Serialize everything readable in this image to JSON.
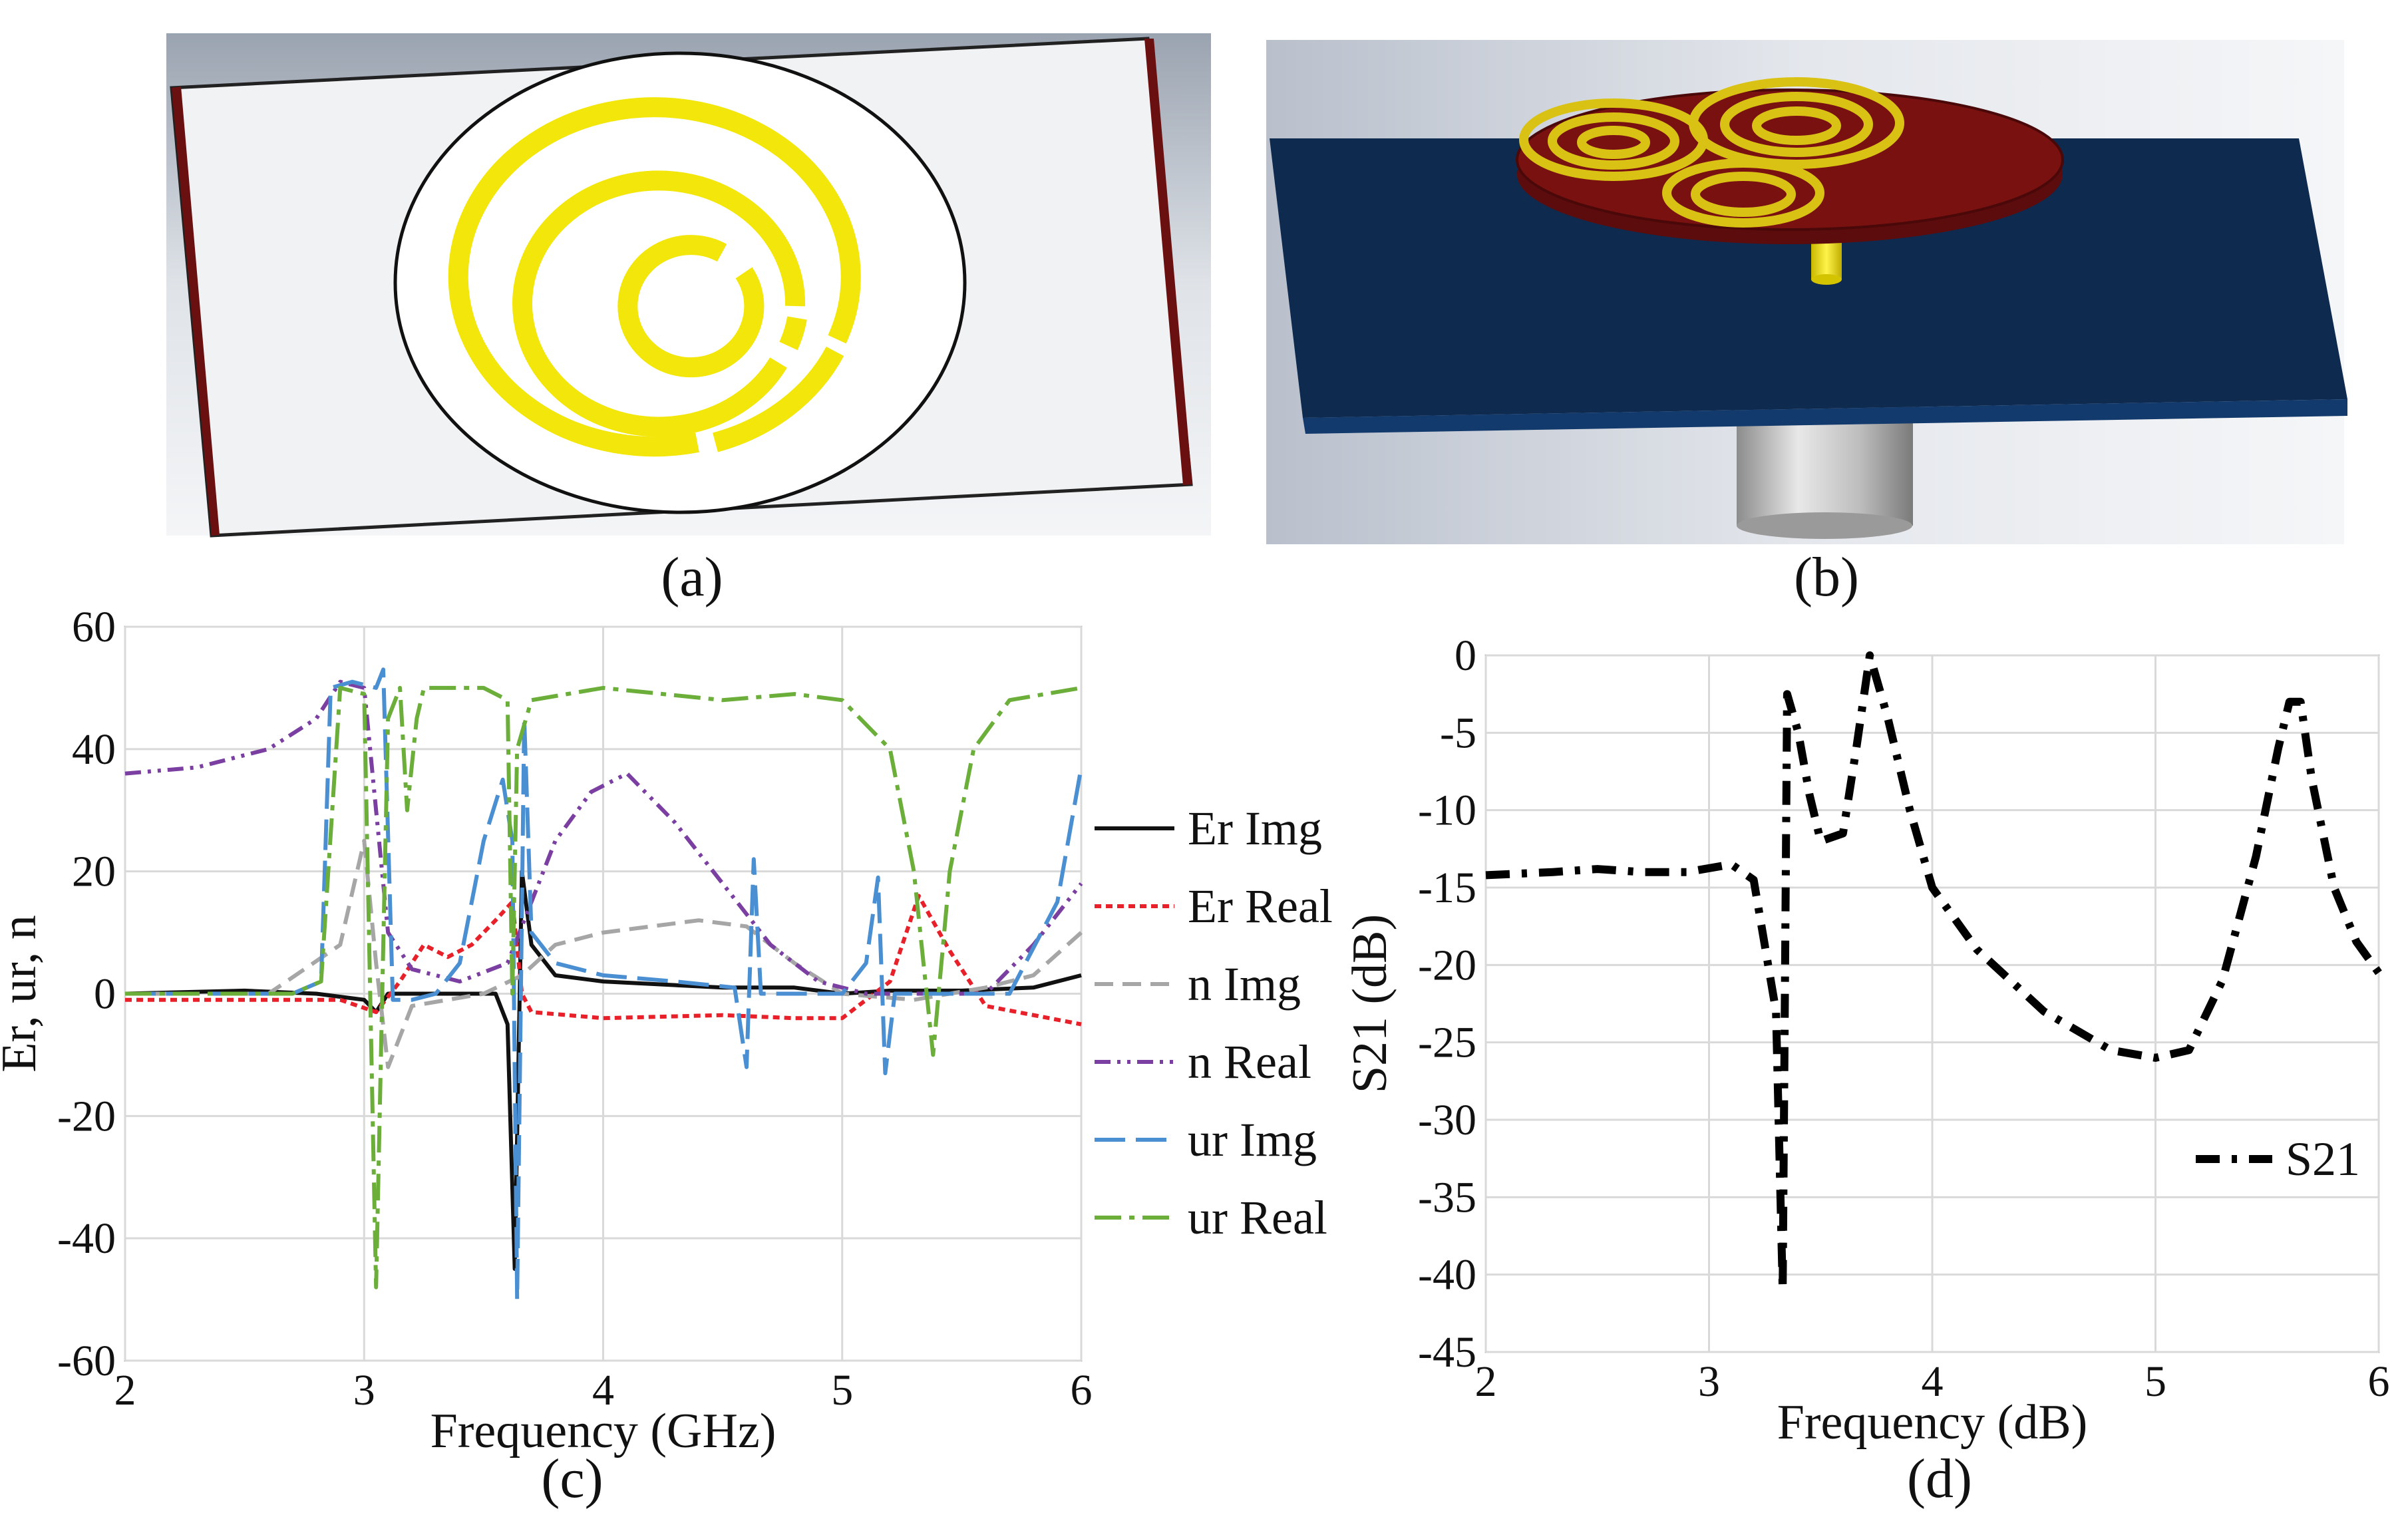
{
  "panels": {
    "a": {
      "label": "(a)"
    },
    "b": {
      "label": "(b)"
    },
    "c": {
      "label": "(c)"
    },
    "d": {
      "label": "(d)"
    }
  },
  "colors": {
    "substrate_blue": "#0e2a4f",
    "ring_yellow": "#f2e60a",
    "patch_red": "#7a1111",
    "disk_white": "#ffffff",
    "edge_darkred": "#6b1010"
  },
  "chart_data": [
    {
      "type": "line",
      "panel": "c",
      "xlabel": "Frequency (GHz)",
      "ylabel": "Er, ur, n",
      "xlim": [
        2,
        6
      ],
      "ylim": [
        -60,
        60
      ],
      "xticks": [
        2,
        3,
        4,
        5,
        6
      ],
      "yticks": [
        60,
        40,
        20,
        0,
        -20,
        -40,
        -60
      ],
      "ytick_labels": [
        "60",
        "40",
        "20",
        "0",
        "-20",
        "-40",
        "-60"
      ],
      "grid": true,
      "legend": "right",
      "series": [
        {
          "name": "Er Img",
          "color": "#111111",
          "dash": "solid",
          "points": [
            [
              2,
              0
            ],
            [
              2.5,
              0.5
            ],
            [
              2.8,
              0
            ],
            [
              3.0,
              -1
            ],
            [
              3.05,
              -3
            ],
            [
              3.1,
              0
            ],
            [
              3.3,
              0
            ],
            [
              3.55,
              0
            ],
            [
              3.6,
              -5
            ],
            [
              3.63,
              -45
            ],
            [
              3.66,
              20
            ],
            [
              3.7,
              8
            ],
            [
              3.8,
              3
            ],
            [
              4.0,
              2
            ],
            [
              4.5,
              1
            ],
            [
              4.8,
              1
            ],
            [
              5.0,
              0
            ],
            [
              5.2,
              0.5
            ],
            [
              5.5,
              0.5
            ],
            [
              5.8,
              1
            ],
            [
              6.0,
              3
            ]
          ]
        },
        {
          "name": "Er Real",
          "color": "#e8202a",
          "dash": "10 7",
          "points": [
            [
              2,
              -1
            ],
            [
              2.5,
              -1
            ],
            [
              2.9,
              -1
            ],
            [
              3.05,
              -3
            ],
            [
              3.15,
              2
            ],
            [
              3.25,
              8
            ],
            [
              3.35,
              6
            ],
            [
              3.45,
              8
            ],
            [
              3.55,
              12
            ],
            [
              3.62,
              15
            ],
            [
              3.66,
              0
            ],
            [
              3.7,
              -3
            ],
            [
              4.0,
              -4
            ],
            [
              4.5,
              -3.5
            ],
            [
              4.8,
              -4
            ],
            [
              5.0,
              -4
            ],
            [
              5.2,
              2
            ],
            [
              5.32,
              16
            ],
            [
              5.45,
              7
            ],
            [
              5.6,
              -2
            ],
            [
              6.0,
              -5
            ]
          ]
        },
        {
          "name": "n Img",
          "color": "#a6a6a6",
          "dash": "28 14",
          "points": [
            [
              2,
              0
            ],
            [
              2.6,
              0
            ],
            [
              2.9,
              8
            ],
            [
              3.0,
              25
            ],
            [
              3.05,
              5
            ],
            [
              3.1,
              -12
            ],
            [
              3.2,
              -2
            ],
            [
              3.5,
              0
            ],
            [
              3.66,
              3
            ],
            [
              3.8,
              8
            ],
            [
              4.0,
              10
            ],
            [
              4.4,
              12
            ],
            [
              4.6,
              11
            ],
            [
              4.8,
              5
            ],
            [
              5.0,
              0
            ],
            [
              5.3,
              -1
            ],
            [
              5.6,
              1
            ],
            [
              5.8,
              3
            ],
            [
              6.0,
              10
            ]
          ]
        },
        {
          "name": "n Real",
          "color": "#7a3fa0",
          "dash": "24 10 5 10 5 10",
          "points": [
            [
              2,
              36
            ],
            [
              2.3,
              37
            ],
            [
              2.6,
              40
            ],
            [
              2.8,
              45
            ],
            [
              2.9,
              51
            ],
            [
              3.0,
              50
            ],
            [
              3.05,
              30
            ],
            [
              3.1,
              10
            ],
            [
              3.2,
              4
            ],
            [
              3.4,
              2
            ],
            [
              3.6,
              5
            ],
            [
              3.7,
              15
            ],
            [
              3.8,
              25
            ],
            [
              3.95,
              33
            ],
            [
              4.1,
              36
            ],
            [
              4.3,
              28
            ],
            [
              4.5,
              18
            ],
            [
              4.7,
              8
            ],
            [
              4.9,
              2
            ],
            [
              5.1,
              0
            ],
            [
              5.4,
              0
            ],
            [
              5.6,
              0
            ],
            [
              5.8,
              8
            ],
            [
              6.0,
              18
            ]
          ]
        },
        {
          "name": "ur Img",
          "color": "#4a8fd2",
          "dash": "46 16",
          "points": [
            [
              2,
              0
            ],
            [
              2.7,
              0
            ],
            [
              2.82,
              2
            ],
            [
              2.86,
              50
            ],
            [
              2.95,
              51
            ],
            [
              3.05,
              50
            ],
            [
              3.08,
              53
            ],
            [
              3.12,
              -1
            ],
            [
              3.2,
              -1
            ],
            [
              3.3,
              0
            ],
            [
              3.4,
              5
            ],
            [
              3.5,
              25
            ],
            [
              3.58,
              35
            ],
            [
              3.62,
              25
            ],
            [
              3.64,
              -50
            ],
            [
              3.67,
              45
            ],
            [
              3.7,
              10
            ],
            [
              3.8,
              5
            ],
            [
              4.0,
              3
            ],
            [
              4.3,
              2
            ],
            [
              4.55,
              1
            ],
            [
              4.6,
              -12
            ],
            [
              4.63,
              22
            ],
            [
              4.66,
              0
            ],
            [
              5.0,
              0
            ],
            [
              5.1,
              5
            ],
            [
              5.15,
              19
            ],
            [
              5.18,
              -13
            ],
            [
              5.22,
              0
            ],
            [
              5.5,
              0
            ],
            [
              5.7,
              0
            ],
            [
              5.9,
              15
            ],
            [
              6.0,
              37
            ]
          ]
        },
        {
          "name": "ur Real",
          "color": "#6cae3a",
          "dash": "40 12 8 12",
          "points": [
            [
              2,
              0
            ],
            [
              2.7,
              0
            ],
            [
              2.82,
              2
            ],
            [
              2.9,
              50
            ],
            [
              3.0,
              49
            ],
            [
              3.05,
              -48
            ],
            [
              3.1,
              45
            ],
            [
              3.15,
              50
            ],
            [
              3.18,
              30
            ],
            [
              3.22,
              45
            ],
            [
              3.25,
              50
            ],
            [
              3.5,
              50
            ],
            [
              3.6,
              48
            ],
            [
              3.62,
              0
            ],
            [
              3.64,
              40
            ],
            [
              3.7,
              48
            ],
            [
              4.0,
              50
            ],
            [
              4.5,
              48
            ],
            [
              4.8,
              49
            ],
            [
              5.0,
              48
            ],
            [
              5.2,
              40
            ],
            [
              5.3,
              20
            ],
            [
              5.38,
              -10
            ],
            [
              5.45,
              20
            ],
            [
              5.55,
              40
            ],
            [
              5.7,
              48
            ],
            [
              6.0,
              50
            ]
          ]
        }
      ]
    },
    {
      "type": "line",
      "panel": "d",
      "xlabel": "Frequency (dB)",
      "ylabel": "S21 (dB)",
      "xlim": [
        2,
        6
      ],
      "ylim": [
        -45,
        0
      ],
      "xticks": [
        2,
        3,
        4,
        5,
        6
      ],
      "yticks": [
        0,
        -5,
        -10,
        -15,
        -20,
        -25,
        -30,
        -35,
        -40,
        -45
      ],
      "ytick_labels": [
        "0",
        "-5",
        "-10",
        "-15",
        "-20",
        "-25",
        "-30",
        "-35",
        "-40",
        "-45"
      ],
      "grid": true,
      "legend": "lower-right",
      "series": [
        {
          "name": "S21",
          "color": "#000000",
          "dash": "36 18 8 18",
          "points": [
            [
              2,
              -14.2
            ],
            [
              2.3,
              -14
            ],
            [
              2.5,
              -13.8
            ],
            [
              2.7,
              -14
            ],
            [
              2.9,
              -14
            ],
            [
              3.1,
              -13.5
            ],
            [
              3.2,
              -14.5
            ],
            [
              3.3,
              -23
            ],
            [
              3.33,
              -41
            ],
            [
              3.35,
              -2.5
            ],
            [
              3.4,
              -5
            ],
            [
              3.45,
              -9
            ],
            [
              3.5,
              -12
            ],
            [
              3.6,
              -11.5
            ],
            [
              3.66,
              -6
            ],
            [
              3.72,
              0
            ],
            [
              3.8,
              -4
            ],
            [
              3.9,
              -10
            ],
            [
              4.0,
              -15
            ],
            [
              4.2,
              -19
            ],
            [
              4.5,
              -23
            ],
            [
              4.8,
              -25.5
            ],
            [
              5.0,
              -26
            ],
            [
              5.15,
              -25.5
            ],
            [
              5.3,
              -21
            ],
            [
              5.45,
              -13
            ],
            [
              5.55,
              -6
            ],
            [
              5.6,
              -3
            ],
            [
              5.65,
              -3
            ],
            [
              5.7,
              -8
            ],
            [
              5.8,
              -15
            ],
            [
              5.9,
              -18.5
            ],
            [
              6.0,
              -20.5
            ]
          ]
        }
      ]
    }
  ]
}
